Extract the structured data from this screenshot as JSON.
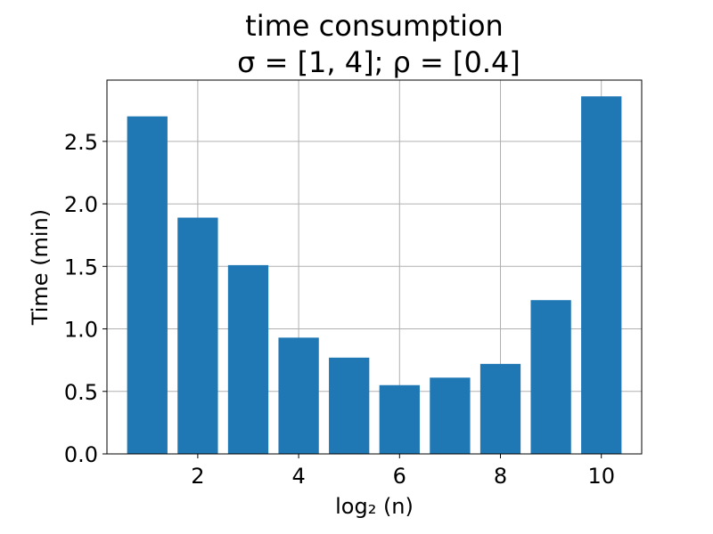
{
  "chart_data": {
    "type": "bar",
    "title": "time consumption",
    "subtitle": "σ = [1, 4];  ρ = [0.4]",
    "xlabel": "log₂ (n)",
    "ylabel": "Time (min)",
    "x": [
      1,
      2,
      3,
      4,
      5,
      6,
      7,
      8,
      9,
      10
    ],
    "values": [
      2.7,
      1.89,
      1.51,
      0.93,
      0.77,
      0.55,
      0.61,
      0.72,
      1.23,
      2.86
    ],
    "xlim": [
      0.2,
      10.8
    ],
    "ylim": [
      0,
      2.99
    ],
    "xticks": [
      2,
      4,
      6,
      8,
      10
    ],
    "xtick_labels": [
      "2",
      "4",
      "6",
      "8",
      "10"
    ],
    "yticks": [
      0.0,
      0.5,
      1.0,
      1.5,
      2.0,
      2.5
    ],
    "ytick_labels": [
      "0.0",
      "0.5",
      "1.0",
      "1.5",
      "2.0",
      "2.5"
    ],
    "bar_color": "#1f77b4",
    "grid": true,
    "legend": "none"
  }
}
